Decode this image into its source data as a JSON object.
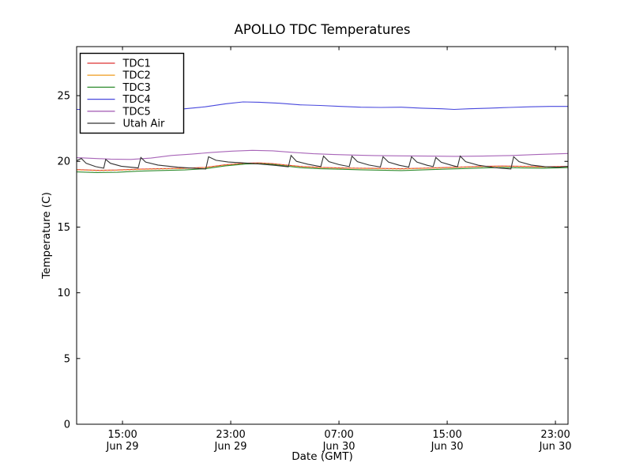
{
  "figure": {
    "background": "#ffffff",
    "axes_edge_color": "#000000"
  },
  "chart_data": {
    "type": "line",
    "title": "APOLLO TDC Temperatures",
    "xlabel": "Date (GMT)",
    "ylabel": "Temperature (C)",
    "xlim": [
      0,
      36.32
    ],
    "ylim": [
      0,
      28.73
    ],
    "grid": false,
    "legend_position": "upper left",
    "y_ticks": [
      0,
      5,
      10,
      15,
      20,
      25
    ],
    "x_ticks": [
      {
        "t": 3.39,
        "time": "15:00",
        "date": "Jun 29"
      },
      {
        "t": 11.39,
        "time": "23:00",
        "date": "Jun 29"
      },
      {
        "t": 19.39,
        "time": "07:00",
        "date": "Jun 30"
      },
      {
        "t": 27.39,
        "time": "15:00",
        "date": "Jun 30"
      },
      {
        "t": 35.39,
        "time": "23:00",
        "date": "Jun 30"
      }
    ],
    "series": [
      {
        "name": "TDC1",
        "color": "#dd3333",
        "dash": "",
        "points": [
          [
            0,
            19.37
          ],
          [
            1.5,
            19.32
          ],
          [
            3,
            19.34
          ],
          [
            4.5,
            19.4
          ],
          [
            6,
            19.44
          ],
          [
            8,
            19.48
          ],
          [
            9.5,
            19.54
          ],
          [
            11,
            19.74
          ],
          [
            12.5,
            19.86
          ],
          [
            13.5,
            19.88
          ],
          [
            14.5,
            19.82
          ],
          [
            15.5,
            19.72
          ],
          [
            16.5,
            19.62
          ],
          [
            18,
            19.54
          ],
          [
            19.5,
            19.5
          ],
          [
            21,
            19.48
          ],
          [
            22.5,
            19.46
          ],
          [
            24,
            19.44
          ],
          [
            25.5,
            19.48
          ],
          [
            27,
            19.52
          ],
          [
            28.5,
            19.57
          ],
          [
            30,
            19.62
          ],
          [
            31.5,
            19.64
          ],
          [
            33,
            19.62
          ],
          [
            34.5,
            19.58
          ],
          [
            36.32,
            19.62
          ]
        ]
      },
      {
        "name": "TDC2",
        "color": "#f0a432",
        "dash": "2.5,2.2",
        "points": [
          [
            0,
            19.35
          ],
          [
            1.5,
            19.3
          ],
          [
            3,
            19.32
          ],
          [
            4.5,
            19.38
          ],
          [
            6,
            19.42
          ],
          [
            8,
            19.46
          ],
          [
            9.5,
            19.52
          ],
          [
            11,
            19.72
          ],
          [
            12.5,
            19.84
          ],
          [
            13.5,
            19.86
          ],
          [
            14.5,
            19.8
          ],
          [
            15.5,
            19.7
          ],
          [
            16.5,
            19.6
          ],
          [
            18,
            19.52
          ],
          [
            19.5,
            19.48
          ],
          [
            21,
            19.46
          ],
          [
            22.5,
            19.44
          ],
          [
            24,
            19.42
          ],
          [
            25.5,
            19.46
          ],
          [
            27,
            19.5
          ],
          [
            28.5,
            19.55
          ],
          [
            30,
            19.6
          ],
          [
            31.5,
            19.62
          ],
          [
            33,
            19.6
          ],
          [
            34.5,
            19.56
          ],
          [
            36.32,
            19.6
          ]
        ]
      },
      {
        "name": "TDC3",
        "color": "#2e8b2e",
        "dash": "",
        "points": [
          [
            0,
            19.2
          ],
          [
            1.5,
            19.15
          ],
          [
            3,
            19.17
          ],
          [
            4.5,
            19.25
          ],
          [
            6,
            19.3
          ],
          [
            8,
            19.35
          ],
          [
            9.5,
            19.44
          ],
          [
            11,
            19.66
          ],
          [
            12.5,
            19.8
          ],
          [
            13.5,
            19.82
          ],
          [
            14.5,
            19.76
          ],
          [
            15.5,
            19.64
          ],
          [
            16.5,
            19.52
          ],
          [
            18,
            19.44
          ],
          [
            19.5,
            19.4
          ],
          [
            21,
            19.36
          ],
          [
            22.5,
            19.33
          ],
          [
            24,
            19.3
          ],
          [
            25.5,
            19.35
          ],
          [
            27,
            19.4
          ],
          [
            28.5,
            19.45
          ],
          [
            30,
            19.5
          ],
          [
            31.5,
            19.53
          ],
          [
            33,
            19.5
          ],
          [
            34.5,
            19.48
          ],
          [
            36.32,
            19.52
          ]
        ]
      },
      {
        "name": "TDC4",
        "color": "#4848dd",
        "dash": "",
        "points": [
          [
            0,
            23.95
          ],
          [
            2,
            23.9
          ],
          [
            4,
            23.88
          ],
          [
            6,
            23.92
          ],
          [
            8,
            24.0
          ],
          [
            9.5,
            24.15
          ],
          [
            11,
            24.38
          ],
          [
            12.3,
            24.52
          ],
          [
            13.5,
            24.5
          ],
          [
            15,
            24.42
          ],
          [
            16.5,
            24.3
          ],
          [
            18,
            24.25
          ],
          [
            19.5,
            24.18
          ],
          [
            21,
            24.12
          ],
          [
            22.5,
            24.1
          ],
          [
            24,
            24.12
          ],
          [
            25.5,
            24.05
          ],
          [
            27,
            24.0
          ],
          [
            27.9,
            23.95
          ],
          [
            29,
            24.0
          ],
          [
            30.5,
            24.05
          ],
          [
            32,
            24.1
          ],
          [
            33.5,
            24.15
          ],
          [
            35,
            24.18
          ],
          [
            36.32,
            24.18
          ]
        ]
      },
      {
        "name": "TDC5",
        "color": "#a865b8",
        "dash": "",
        "points": [
          [
            0,
            20.28
          ],
          [
            1,
            20.24
          ],
          [
            2.5,
            20.17
          ],
          [
            4,
            20.15
          ],
          [
            5.5,
            20.25
          ],
          [
            7,
            20.45
          ],
          [
            8.5,
            20.55
          ],
          [
            10,
            20.68
          ],
          [
            11.5,
            20.78
          ],
          [
            13,
            20.84
          ],
          [
            14.5,
            20.8
          ],
          [
            16,
            20.68
          ],
          [
            17.5,
            20.58
          ],
          [
            19,
            20.52
          ],
          [
            20.5,
            20.48
          ],
          [
            22,
            20.44
          ],
          [
            24,
            20.42
          ],
          [
            26,
            20.4
          ],
          [
            28,
            20.38
          ],
          [
            30,
            20.4
          ],
          [
            32,
            20.44
          ],
          [
            34,
            20.52
          ],
          [
            36.32,
            20.6
          ]
        ]
      },
      {
        "name": "Utah Air",
        "color": "#333333",
        "dash": "",
        "points": [
          [
            0,
            20.05
          ],
          [
            0.35,
            20.22
          ],
          [
            0.7,
            19.85
          ],
          [
            1.4,
            19.6
          ],
          [
            2.0,
            19.48
          ],
          [
            2.15,
            20.15
          ],
          [
            2.5,
            19.85
          ],
          [
            3.3,
            19.63
          ],
          [
            4.55,
            19.5
          ],
          [
            4.75,
            20.3
          ],
          [
            5.1,
            19.95
          ],
          [
            6.0,
            19.72
          ],
          [
            7.5,
            19.55
          ],
          [
            9.55,
            19.42
          ],
          [
            9.75,
            20.35
          ],
          [
            10.3,
            20.08
          ],
          [
            11.2,
            19.95
          ],
          [
            12.3,
            19.88
          ],
          [
            13.5,
            19.8
          ],
          [
            14.6,
            19.7
          ],
          [
            15.65,
            19.58
          ],
          [
            15.85,
            20.45
          ],
          [
            16.25,
            20.0
          ],
          [
            17.1,
            19.78
          ],
          [
            18.05,
            19.6
          ],
          [
            18.25,
            20.4
          ],
          [
            18.65,
            19.98
          ],
          [
            19.4,
            19.75
          ],
          [
            20.15,
            19.6
          ],
          [
            20.35,
            20.4
          ],
          [
            20.75,
            19.98
          ],
          [
            21.6,
            19.72
          ],
          [
            22.45,
            19.57
          ],
          [
            22.65,
            20.35
          ],
          [
            23.05,
            19.95
          ],
          [
            23.85,
            19.7
          ],
          [
            24.55,
            19.56
          ],
          [
            24.75,
            20.35
          ],
          [
            25.15,
            19.95
          ],
          [
            25.9,
            19.7
          ],
          [
            26.35,
            19.6
          ],
          [
            26.55,
            20.3
          ],
          [
            26.95,
            19.93
          ],
          [
            27.7,
            19.7
          ],
          [
            28.15,
            19.58
          ],
          [
            28.35,
            20.4
          ],
          [
            28.75,
            19.98
          ],
          [
            29.7,
            19.7
          ],
          [
            30.9,
            19.52
          ],
          [
            32.1,
            19.42
          ],
          [
            32.3,
            20.35
          ],
          [
            32.7,
            19.98
          ],
          [
            33.6,
            19.72
          ],
          [
            34.6,
            19.6
          ],
          [
            35.6,
            19.55
          ],
          [
            36.32,
            19.62
          ]
        ]
      }
    ]
  }
}
